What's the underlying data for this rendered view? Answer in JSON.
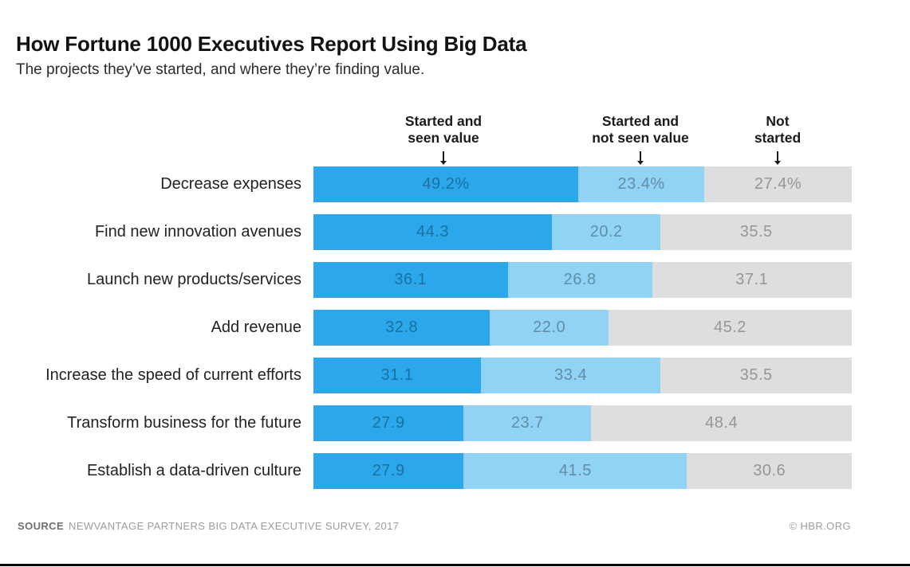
{
  "header": {
    "title": "How Fortune 1000 Executives Report Using Big Data",
    "subtitle": "The projects they’ve started, and where they’re finding value."
  },
  "legend": {
    "position": "top",
    "items": [
      {
        "line1": "Started and",
        "line2": "seen value"
      },
      {
        "line1": "Started and",
        "line2": "not seen value"
      },
      {
        "line1": "Not",
        "line2": "started"
      }
    ]
  },
  "footer": {
    "source_label": "SOURCE",
    "source_text": "NEWVANTAGE PARTNERS BIG DATA EXECUTIVE SURVEY, 2017",
    "credit": "© HBR.ORG"
  },
  "chart_data": {
    "type": "bar",
    "stacked": true,
    "orientation": "horizontal",
    "grid": false,
    "xlim": [
      0,
      100
    ],
    "title": "How Fortune 1000 Executives Report Using Big Data",
    "subtitle": "The projects they’ve started, and where they’re finding value.",
    "categories": [
      "Decrease expenses",
      "Find new innovation avenues",
      "Launch new products/services",
      "Add revenue",
      "Increase the speed of current efforts",
      "Transform business for the future",
      "Establish a data-driven culture"
    ],
    "series": [
      {
        "name": "Started and seen value",
        "color": "#2BA7EC",
        "values": [
          49.2,
          44.3,
          36.1,
          32.8,
          31.1,
          27.9,
          27.9
        ],
        "labels": [
          "49.2%",
          "44.3",
          "36.1",
          "32.8",
          "31.1",
          "27.9",
          "27.9"
        ]
      },
      {
        "name": "Started and not seen value",
        "color": "#90D3F5",
        "values": [
          23.4,
          20.2,
          26.8,
          22.0,
          33.4,
          23.7,
          41.5
        ],
        "labels": [
          "23.4%",
          "20.2",
          "26.8",
          "22.0",
          "33.4",
          "23.7",
          "41.5"
        ]
      },
      {
        "name": "Not started",
        "color": "#DDDEDF",
        "values": [
          27.4,
          35.5,
          37.1,
          45.2,
          35.5,
          48.4,
          30.6
        ],
        "labels": [
          "27.4%",
          "35.5",
          "37.1",
          "45.2",
          "35.5",
          "48.4",
          "30.6"
        ]
      }
    ]
  }
}
